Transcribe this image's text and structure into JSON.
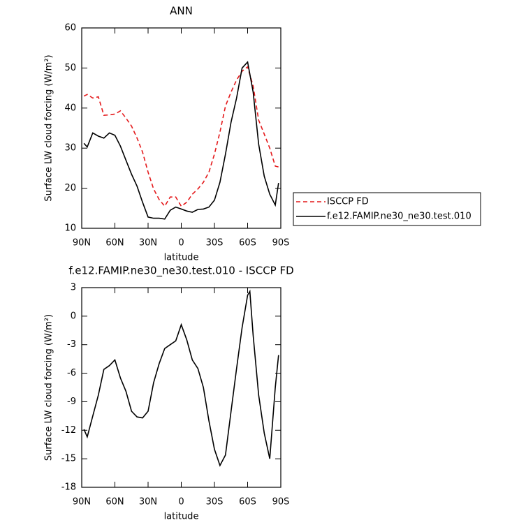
{
  "chart_data": [
    {
      "type": "line",
      "title": "ANN",
      "x_label": "latitude",
      "y_label": "Surface LW cloud forcing (W/m²)",
      "x": [
        88,
        85,
        80,
        75,
        70,
        65,
        60,
        55,
        50,
        45,
        40,
        35,
        30,
        25,
        20,
        15,
        10,
        5,
        0,
        -5,
        -10,
        -15,
        -20,
        -25,
        -30,
        -35,
        -40,
        -45,
        -50,
        -55,
        -60,
        -65,
        -70,
        -75,
        -80,
        -85,
        -88
      ],
      "series": [
        {
          "name": "ISCCP FD",
          "color": "#e41a1c",
          "dash": true,
          "values": [
            43.0,
            43.4,
            42.5,
            42.8,
            38.2,
            38.3,
            38.5,
            39.3,
            37.5,
            35.5,
            32.5,
            29,
            24,
            19.8,
            17.2,
            15.5,
            17.8,
            17.8,
            15.5,
            16.5,
            18.5,
            19.8,
            21.5,
            24,
            28.5,
            34,
            40.5,
            44,
            47,
            49.2,
            50.3,
            45.5,
            37,
            33.5,
            30,
            25.5,
            25.3
          ]
        },
        {
          "name": "f.e12.FAMIP.ne30_ne30.test.010",
          "color": "#000000",
          "dash": false,
          "values": [
            31.2,
            30.3,
            33.8,
            33,
            32.5,
            33.8,
            33.2,
            30.5,
            27,
            23.5,
            20.5,
            16.5,
            12.8,
            12.5,
            12.5,
            12.3,
            14.5,
            15.3,
            14.8,
            14.3,
            14,
            14.7,
            14.8,
            15.3,
            17,
            21.5,
            28.5,
            36.5,
            42.5,
            50,
            51.5,
            44,
            31,
            23,
            18.5,
            15.8,
            21.3
          ]
        }
      ],
      "xlim": [
        90,
        -90
      ],
      "xticks": [
        {
          "value": 90,
          "label": "90N"
        },
        {
          "value": 60,
          "label": "60N"
        },
        {
          "value": 30,
          "label": "30N"
        },
        0,
        {
          "value": -30,
          "label": "30S"
        },
        {
          "value": -60,
          "label": "60S"
        },
        {
          "value": -90,
          "label": "90S"
        }
      ],
      "ylim": [
        10,
        60
      ],
      "yticks": [
        10,
        20,
        30,
        40,
        50,
        60
      ],
      "legend": true
    },
    {
      "type": "line",
      "title": "f.e12.FAMIP.ne30_ne30.test.010 - ISCCP FD",
      "x_label": "latitude",
      "y_label": "Surface LW cloud forcing (W/m²)",
      "x": [
        88,
        85,
        80,
        75,
        70,
        65,
        60,
        55,
        50,
        45,
        40,
        35,
        30,
        25,
        20,
        15,
        10,
        5,
        0,
        -5,
        -10,
        -15,
        -20,
        -25,
        -30,
        -35,
        -40,
        -45,
        -50,
        -55,
        -60,
        -62,
        -65,
        -70,
        -75,
        -80,
        -85,
        -88
      ],
      "series": [
        {
          "color": "#000000",
          "dash": false,
          "values": [
            -11.9,
            -12.7,
            -10.5,
            -8.3,
            -5.6,
            -5.2,
            -4.6,
            -6.5,
            -7.9,
            -10,
            -10.6,
            -10.7,
            -10,
            -7,
            -5,
            -3.4,
            -3,
            -2.6,
            -0.9,
            -2.5,
            -4.6,
            -5.5,
            -7.5,
            -11,
            -14,
            -15.7,
            -14.6,
            -10,
            -5.5,
            -1.2,
            2.2,
            2.6,
            -2,
            -8.3,
            -12.3,
            -15,
            -7.5,
            -4.1
          ]
        }
      ],
      "xlim": [
        90,
        -90
      ],
      "xticks": [
        {
          "value": 90,
          "label": "90N"
        },
        {
          "value": 60,
          "label": "60N"
        },
        {
          "value": 30,
          "label": "30N"
        },
        0,
        {
          "value": -30,
          "label": "30S"
        },
        {
          "value": -60,
          "label": "60S"
        },
        {
          "value": -90,
          "label": "90S"
        }
      ],
      "ylim": [
        -18,
        3
      ],
      "yticks": [
        -18,
        -15,
        -12,
        -9,
        -6,
        -3,
        0,
        3
      ],
      "legend": false
    }
  ]
}
